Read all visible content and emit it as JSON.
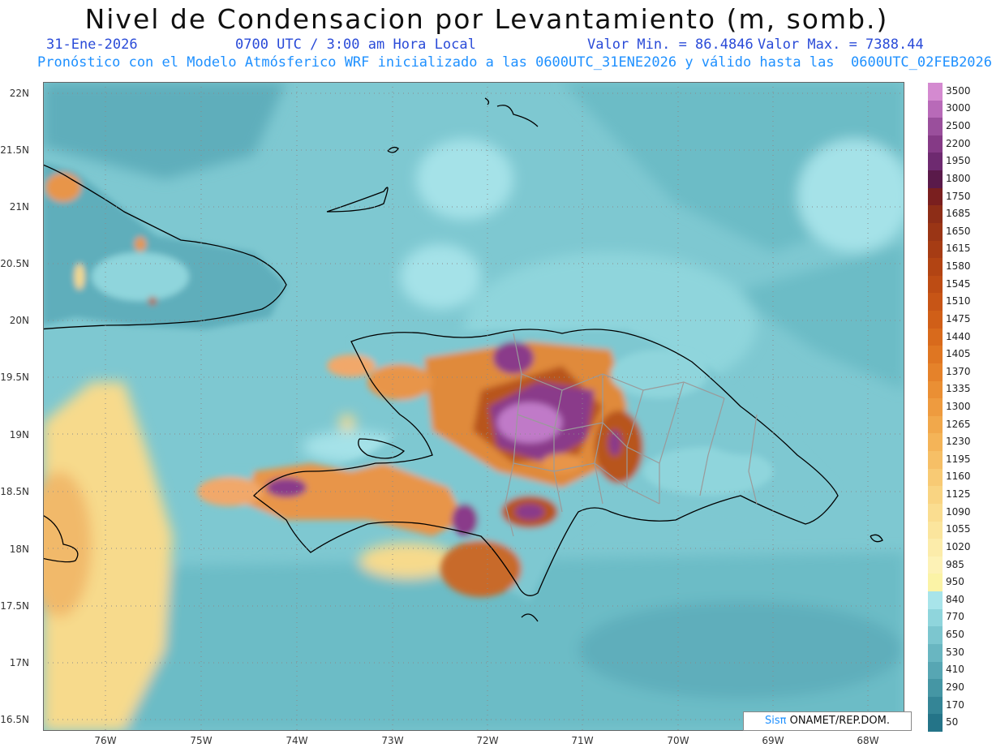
{
  "header": {
    "title": "Nivel de Condensacion por Levantamiento (m, somb.)",
    "date": "31-Ene-2026",
    "time": "0700 UTC / 3:00 am Hora Local",
    "vmin": "Valor Min. = 86.4846",
    "vmax": "Valor Max. = 7388.44",
    "model_line": "Pronóstico con el Modelo Atmósferico WRF inicializado a las 0600UTC_31ENE2026 y válido hasta las  0600UTC_02FEB2026"
  },
  "axes": {
    "lat_labels": [
      "22N",
      "21.5N",
      "21N",
      "20.5N",
      "20N",
      "19.5N",
      "19N",
      "18.5N",
      "18N",
      "17.5N",
      "17N",
      "16.5N"
    ],
    "lon_labels": [
      "76W",
      "75W",
      "74W",
      "73W",
      "72W",
      "71W",
      "70W",
      "69W",
      "68W"
    ]
  },
  "colorbar": {
    "labels": [
      "3500",
      "3000",
      "2500",
      "2200",
      "1950",
      "1800",
      "1750",
      "1685",
      "1650",
      "1615",
      "1580",
      "1545",
      "1510",
      "1475",
      "1440",
      "1405",
      "1370",
      "1335",
      "1300",
      "1265",
      "1230",
      "1195",
      "1160",
      "1125",
      "1090",
      "1055",
      "1020",
      "985",
      "950",
      "840",
      "770",
      "650",
      "530",
      "410",
      "290",
      "170",
      "50"
    ],
    "colors": [
      "#d48ad0",
      "#b86ab8",
      "#9a4f9c",
      "#853a86",
      "#6e2a70",
      "#5a1a4a",
      "#7a1f1f",
      "#8d2d17",
      "#9a3515",
      "#a63c14",
      "#b24413",
      "#bd4c14",
      "#c75516",
      "#d05f18",
      "#d86a1c",
      "#df7622",
      "#e5822a",
      "#ea8f34",
      "#ee9b3f",
      "#f1a84b",
      "#f4b458",
      "#f6bf66",
      "#f8ca74",
      "#f9d482",
      "#fadd90",
      "#fbe59d",
      "#fcecaa",
      "#fdf2b6",
      "#fbf3a6",
      "#a8e4ea",
      "#8fd5dc",
      "#7cc6cf",
      "#69b6c1",
      "#57a6b3",
      "#4596a4",
      "#348596",
      "#247488"
    ]
  },
  "map_colors": {
    "ocean": "#7ec8d1",
    "ocean_deep": "#5eaebb",
    "ocean_light": "#a5e2e8",
    "yellow": "#f7da8c",
    "orange": "#e8954a",
    "brown": "#b8541c",
    "purple": "#8a3a8a",
    "coast": "#000000",
    "border": "#9a9a9a",
    "grid": "#8a8a8a"
  },
  "credit": {
    "brand": "Sisπ",
    "text": " ONAMET/REP.DOM."
  }
}
